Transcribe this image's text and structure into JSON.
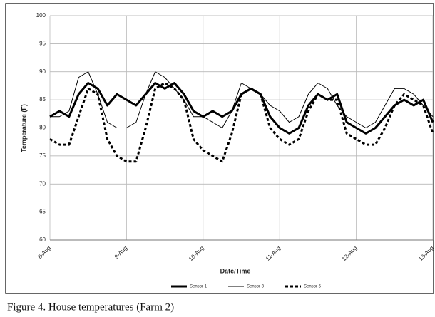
{
  "chart_data": {
    "type": "line",
    "xlabel": "Date/Time",
    "ylabel": "Temperature (F)",
    "caption": "Figure 4.  House temperatures (Farm 2)",
    "x": [
      0,
      0.125,
      0.25,
      0.375,
      0.5,
      0.625,
      0.75,
      0.875,
      1,
      1.125,
      1.25,
      1.375,
      1.5,
      1.625,
      1.75,
      1.875,
      2,
      2.125,
      2.25,
      2.375,
      2.5,
      2.625,
      2.75,
      2.875,
      3,
      3.125,
      3.25,
      3.375,
      3.5,
      3.625,
      3.75,
      3.875,
      4,
      4.125,
      4.25,
      4.375,
      4.5,
      4.625,
      4.75,
      4.875,
      5
    ],
    "series": [
      {
        "name": "Sensor 1",
        "color": "#000000",
        "width": 3,
        "dashed": false,
        "values": [
          82,
          83,
          82,
          86,
          88,
          87,
          84,
          86,
          85,
          84,
          86,
          88,
          87,
          88,
          86,
          83,
          82,
          83,
          82,
          83,
          86,
          87,
          86,
          82,
          80,
          79,
          80,
          84,
          86,
          85,
          86,
          81,
          80,
          79,
          80,
          82,
          84,
          85,
          84,
          85,
          81
        ]
      },
      {
        "name": "Sensor 3",
        "color": "#000000",
        "width": 1,
        "dashed": false,
        "values": [
          82,
          82,
          83,
          89,
          90,
          86,
          81,
          80,
          80,
          81,
          86,
          90,
          89,
          87,
          85,
          82,
          82,
          81,
          80,
          83,
          88,
          87,
          86,
          84,
          83,
          81,
          82,
          86,
          88,
          87,
          84,
          82,
          81,
          80,
          81,
          84,
          87,
          87,
          86,
          84,
          82
        ]
      },
      {
        "name": "Sensor 5",
        "color": "#000000",
        "width": 3,
        "dashed": true,
        "values": [
          78,
          77,
          77,
          82,
          87,
          86,
          78,
          75,
          74,
          74,
          80,
          87,
          88,
          87,
          85,
          78,
          76,
          75,
          74,
          79,
          86,
          87,
          86,
          80,
          78,
          77,
          78,
          83,
          86,
          85,
          85,
          79,
          78,
          77,
          77,
          80,
          84,
          86,
          85,
          84,
          79
        ]
      }
    ],
    "xlim": [
      0,
      5
    ],
    "xticks": [
      {
        "value": 0,
        "label": "8-Aug"
      },
      {
        "value": 1,
        "label": "9-Aug"
      },
      {
        "value": 2,
        "label": "10-Aug"
      },
      {
        "value": 3,
        "label": "11-Aug"
      },
      {
        "value": 4,
        "label": "12-Aug"
      },
      {
        "value": 5,
        "label": "13-Aug"
      }
    ],
    "ylim": [
      60,
      100
    ],
    "yticks": [
      60,
      65,
      70,
      75,
      80,
      85,
      90,
      95,
      100
    ],
    "grid": true,
    "legend": "bottom"
  }
}
